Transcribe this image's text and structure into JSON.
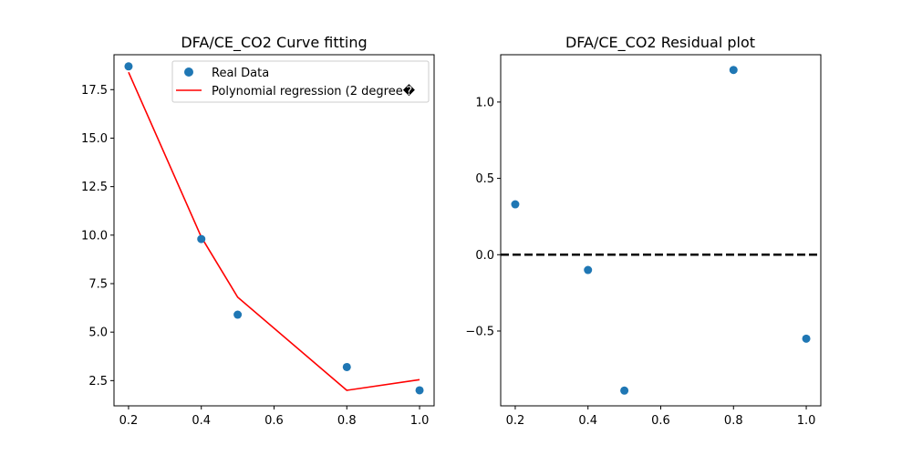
{
  "chart_data": [
    {
      "type": "scatter",
      "title": "DFA/CE_CO2 Curve fitting",
      "xlabel": "",
      "ylabel": "",
      "xlim": [
        0.16,
        1.04
      ],
      "ylim": [
        1.2,
        19.3
      ],
      "x_ticks": [
        "0.2",
        "0.4",
        "0.6",
        "0.8",
        "1.0"
      ],
      "y_ticks": [
        "2.5",
        "5.0",
        "7.5",
        "10.0",
        "12.5",
        "15.0",
        "17.5"
      ],
      "series": [
        {
          "name": "Real Data",
          "kind": "scatter",
          "color": "#1f77b4",
          "x": [
            0.2,
            0.4,
            0.5,
            0.8,
            1.0
          ],
          "y": [
            18.7,
            9.8,
            5.9,
            3.2,
            2.0
          ]
        },
        {
          "name": "Polynomial regression (2 degree�",
          "kind": "line",
          "color": "#ff0000",
          "x": [
            0.2,
            0.4,
            0.5,
            0.8,
            1.0
          ],
          "y": [
            18.4,
            9.9,
            6.8,
            2.0,
            2.55
          ]
        }
      ],
      "legend": "top-right",
      "grid": false
    },
    {
      "type": "scatter",
      "title": "DFA/CE_CO2 Residual plot",
      "xlabel": "",
      "ylabel": "",
      "xlim": [
        0.16,
        1.04
      ],
      "ylim": [
        -0.99,
        1.31
      ],
      "x_ticks": [
        "0.2",
        "0.4",
        "0.6",
        "0.8",
        "1.0"
      ],
      "y_ticks": [
        "−0.5",
        "0.0",
        "0.5",
        "1.0"
      ],
      "series": [
        {
          "name": "",
          "kind": "scatter",
          "color": "#1f77b4",
          "x": [
            0.2,
            0.4,
            0.5,
            0.8,
            1.0
          ],
          "y": [
            0.33,
            -0.1,
            -0.89,
            1.21,
            -0.55
          ]
        }
      ],
      "reference_line": {
        "y": 0.0,
        "style": "dashed",
        "color": "#000000"
      },
      "legend": "none",
      "grid": false
    }
  ]
}
